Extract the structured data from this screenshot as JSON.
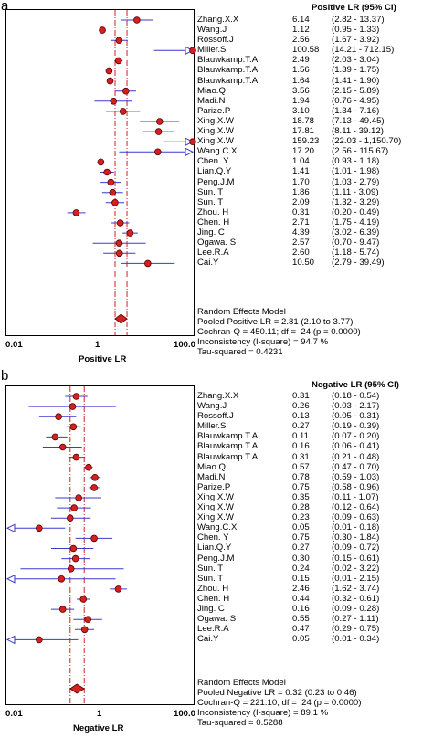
{
  "chart_data": [
    {
      "panel": "a",
      "type": "forest",
      "header": "Positive LR (95% CI)",
      "xlabel": "Positive LR",
      "x_scale": "log",
      "xlim": [
        0.01,
        100.0
      ],
      "tick_labels": [
        "0.01",
        "1",
        "100.0"
      ],
      "pooled": {
        "value": 2.81,
        "lo": 2.1,
        "hi": 3.77
      },
      "studies": [
        {
          "name": "Zhang.X.X",
          "value": 6.14,
          "lo": 2.82,
          "hi": 13.37,
          "ci": "(2.82 - 13.37)"
        },
        {
          "name": "Wang.J",
          "value": 1.12,
          "lo": 0.95,
          "hi": 1.33,
          "ci": "(0.95 - 1.33)"
        },
        {
          "name": "Rossoff.J",
          "value": 2.56,
          "lo": 1.67,
          "hi": 3.92,
          "ci": "(1.67 - 3.92)"
        },
        {
          "name": "Miller.S",
          "value": 100.58,
          "lo": 14.21,
          "hi": 712.15,
          "ci": "(14.21 - 712.15)"
        },
        {
          "name": "Blauwkamp.T.A",
          "value": 2.49,
          "lo": 2.03,
          "hi": 3.04,
          "ci": "(2.03 - 3.04)"
        },
        {
          "name": "Blauwkamp.T.A",
          "value": 1.56,
          "lo": 1.39,
          "hi": 1.75,
          "ci": "(1.39 - 1.75)"
        },
        {
          "name": "Blauwkamp.T.A",
          "value": 1.64,
          "lo": 1.41,
          "hi": 1.9,
          "ci": "(1.41 - 1.90)"
        },
        {
          "name": "Miao.Q",
          "value": 3.56,
          "lo": 2.15,
          "hi": 5.89,
          "ci": "(2.15 - 5.89)"
        },
        {
          "name": "Madi.N",
          "value": 1.94,
          "lo": 0.76,
          "hi": 4.95,
          "ci": "(0.76 - 4.95)"
        },
        {
          "name": "Parize.P",
          "value": 3.1,
          "lo": 1.34,
          "hi": 7.16,
          "ci": "(1.34 - 7.16)"
        },
        {
          "name": "Xing.X.W",
          "value": 18.78,
          "lo": 7.13,
          "hi": 49.45,
          "ci": "(7.13 - 49.45)"
        },
        {
          "name": "Xing.X.W",
          "value": 17.81,
          "lo": 8.11,
          "hi": 39.12,
          "ci": "(8.11 - 39.12)"
        },
        {
          "name": "Xing.X.W",
          "value": 159.23,
          "lo": 22.03,
          "hi": 1150.7,
          "ci": "(22.03 - 1,150.70)"
        },
        {
          "name": "Wang.C.X",
          "value": 17.2,
          "lo": 2.56,
          "hi": 115.67,
          "ci": "(2.56 - 115.67)"
        },
        {
          "name": "Chen. Y",
          "value": 1.04,
          "lo": 0.93,
          "hi": 1.18,
          "ci": "(0.93 - 1.18)"
        },
        {
          "name": "Lian.Q.Y",
          "value": 1.41,
          "lo": 1.01,
          "hi": 1.98,
          "ci": "(1.01 - 1.98)"
        },
        {
          "name": "Peng.J.M",
          "value": 1.7,
          "lo": 1.03,
          "hi": 2.79,
          "ci": "(1.03 - 2.79)"
        },
        {
          "name": "Sun. T",
          "value": 1.86,
          "lo": 1.11,
          "hi": 3.09,
          "ci": "(1.11 - 3.09)"
        },
        {
          "name": "Sun. T",
          "value": 2.09,
          "lo": 1.32,
          "hi": 3.29,
          "ci": "(1.32 - 3.29)"
        },
        {
          "name": "Zhou. H",
          "value": 0.31,
          "lo": 0.2,
          "hi": 0.49,
          "ci": "(0.20 - 0.49)"
        },
        {
          "name": "Chen. H",
          "value": 2.71,
          "lo": 1.75,
          "hi": 4.19,
          "ci": "(1.75 - 4.19)"
        },
        {
          "name": "Jing. C",
          "value": 4.39,
          "lo": 3.02,
          "hi": 6.39,
          "ci": "(3.02 - 6.39)"
        },
        {
          "name": "Ogawa. S",
          "value": 2.57,
          "lo": 0.7,
          "hi": 9.47,
          "ci": "(0.70 - 9.47)"
        },
        {
          "name": "Lee.R.A",
          "value": 2.6,
          "lo": 1.18,
          "hi": 5.74,
          "ci": "(1.18 - 5.74)"
        },
        {
          "name": "Cai.Y",
          "value": 10.5,
          "lo": 2.79,
          "hi": 39.49,
          "ci": "(2.79 - 39.49)"
        }
      ],
      "summary_lines": [
        "Random Effects Model",
        "Pooled Positive LR = 2.81 (2.10 to 3.77)",
        "Cochran-Q = 450.11; df =  24 (p = 0.0000)",
        "Inconsistency (I-square) = 94.7 %",
        "Tau-squared = 0.4231"
      ]
    },
    {
      "panel": "b",
      "type": "forest",
      "header": "Negative LR (95% CI)",
      "xlabel": "Negative LR",
      "x_scale": "log",
      "xlim": [
        0.01,
        100.0
      ],
      "tick_labels": [
        "0.01",
        "1",
        "100.0"
      ],
      "pooled": {
        "value": 0.32,
        "lo": 0.23,
        "hi": 0.46
      },
      "studies": [
        {
          "name": "Zhang.X.X",
          "value": 0.31,
          "lo": 0.18,
          "hi": 0.54,
          "ci": "(0.18 - 0.54)"
        },
        {
          "name": "Wang.J",
          "value": 0.26,
          "lo": 0.03,
          "hi": 2.17,
          "ci": "(0.03 - 2.17)"
        },
        {
          "name": "Rossoff.J",
          "value": 0.13,
          "lo": 0.05,
          "hi": 0.31,
          "ci": "(0.05 - 0.31)"
        },
        {
          "name": "Miller.S",
          "value": 0.27,
          "lo": 0.19,
          "hi": 0.39,
          "ci": "(0.19 - 0.39)"
        },
        {
          "name": "Blauwkamp.T.A",
          "value": 0.11,
          "lo": 0.07,
          "hi": 0.2,
          "ci": "(0.07 - 0.20)"
        },
        {
          "name": "Blauwkamp.T.A",
          "value": 0.16,
          "lo": 0.06,
          "hi": 0.41,
          "ci": "(0.06 - 0.41)"
        },
        {
          "name": "Blauwkamp.T.A",
          "value": 0.31,
          "lo": 0.21,
          "hi": 0.48,
          "ci": "(0.21 - 0.48)"
        },
        {
          "name": "Miao.Q",
          "value": 0.57,
          "lo": 0.47,
          "hi": 0.7,
          "ci": "(0.47 - 0.70)"
        },
        {
          "name": "Madi.N",
          "value": 0.78,
          "lo": 0.59,
          "hi": 1.03,
          "ci": "(0.59 - 1.03)"
        },
        {
          "name": "Parize.P",
          "value": 0.75,
          "lo": 0.58,
          "hi": 0.96,
          "ci": "(0.58 - 0.96)"
        },
        {
          "name": "Xing.X.W",
          "value": 0.35,
          "lo": 0.11,
          "hi": 1.07,
          "ci": "(0.11 - 1.07)"
        },
        {
          "name": "Xing.X.W",
          "value": 0.28,
          "lo": 0.12,
          "hi": 0.64,
          "ci": "(0.12 - 0.64)"
        },
        {
          "name": "Xing.X.W",
          "value": 0.23,
          "lo": 0.09,
          "hi": 0.63,
          "ci": "(0.09 - 0.63)"
        },
        {
          "name": "Wang.C.X",
          "value": 0.05,
          "lo": 0.01,
          "hi": 0.18,
          "ci": "(0.01 - 0.18)"
        },
        {
          "name": "Chen. Y",
          "value": 0.75,
          "lo": 0.3,
          "hi": 1.84,
          "ci": "(0.30 - 1.84)"
        },
        {
          "name": "Lian.Q.Y",
          "value": 0.27,
          "lo": 0.09,
          "hi": 0.72,
          "ci": "(0.09 - 0.72)"
        },
        {
          "name": "Peng.J.M",
          "value": 0.3,
          "lo": 0.15,
          "hi": 0.61,
          "ci": "(0.15 - 0.61)"
        },
        {
          "name": "Sun. T",
          "value": 0.24,
          "lo": 0.02,
          "hi": 3.22,
          "ci": "(0.02 - 3.22)"
        },
        {
          "name": "Sun. T",
          "value": 0.15,
          "lo": 0.01,
          "hi": 2.15,
          "ci": "(0.01 - 2.15)"
        },
        {
          "name": "Zhou. H",
          "value": 2.46,
          "lo": 1.62,
          "hi": 3.74,
          "ci": "(1.62 - 3.74)"
        },
        {
          "name": "Chen. H",
          "value": 0.44,
          "lo": 0.32,
          "hi": 0.61,
          "ci": "(0.32 - 0.61)"
        },
        {
          "name": "Jing. C",
          "value": 0.16,
          "lo": 0.09,
          "hi": 0.28,
          "ci": "(0.09 - 0.28)"
        },
        {
          "name": "Ogawa. S",
          "value": 0.55,
          "lo": 0.27,
          "hi": 1.11,
          "ci": "(0.27 - 1.11)"
        },
        {
          "name": "Lee.R.A",
          "value": 0.47,
          "lo": 0.29,
          "hi": 0.75,
          "ci": "(0.29 - 0.75)"
        },
        {
          "name": "Cai.Y",
          "value": 0.05,
          "lo": 0.01,
          "hi": 0.34,
          "ci": "(0.01 - 0.34)"
        }
      ],
      "summary_lines": [
        "Random Effects Model",
        "Pooled Negative LR = 0.32 (0.23 to 0.46)",
        "Cochran-Q = 221.10; df =  24 (p = 0.0000)",
        "Inconsistency (I-square) = 89.1 %",
        "Tau-squared = 0.5288"
      ]
    }
  ],
  "panels": {
    "a": {
      "letter": "a"
    },
    "b": {
      "letter": "b"
    }
  },
  "colors": {
    "marker_fill": "#d42020",
    "marker_stroke": "#5a0000",
    "ci_line": "#3a3acf",
    "ref_line": "#d42020",
    "pooled_fill": "#d42020"
  }
}
